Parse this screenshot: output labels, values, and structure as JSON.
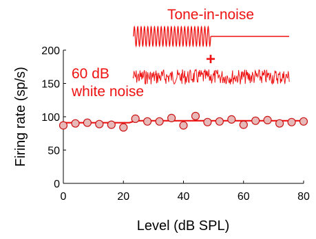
{
  "chart_data": {
    "type": "line",
    "xlabel": "Level (dB SPL)",
    "ylabel": "Firing rate (sp/s)",
    "xlim": [
      0,
      80
    ],
    "ylim": [
      0,
      200
    ],
    "xticks": [
      0,
      20,
      40,
      60,
      80
    ],
    "yticks": [
      0,
      50,
      100,
      150,
      200
    ],
    "grid": false,
    "series": [
      {
        "marker": "circle",
        "x": [
          0,
          4,
          8,
          12,
          16,
          20,
          24,
          28,
          32,
          36,
          40,
          44,
          48,
          52,
          56,
          60,
          64,
          68,
          72,
          76,
          80
        ],
        "y": [
          87,
          90,
          91,
          89,
          88,
          84,
          97,
          93,
          93,
          98,
          87,
          101,
          92,
          93,
          96,
          88,
          94,
          95,
          90,
          92,
          93
        ]
      },
      {
        "marker": "none",
        "x": [
          0,
          22,
          24,
          80
        ],
        "y": [
          91,
          91,
          94,
          94
        ]
      }
    ],
    "annotations": {
      "tone_label": "Tone-in-noise",
      "plus": "+",
      "noise_label_line1": "60 dB",
      "noise_label_line2": "white noise"
    },
    "colors": {
      "accent": "#ee1111",
      "marker_fill": "#e6b8b8",
      "marker_stroke": "#cc1111",
      "axis": "#000000"
    }
  }
}
